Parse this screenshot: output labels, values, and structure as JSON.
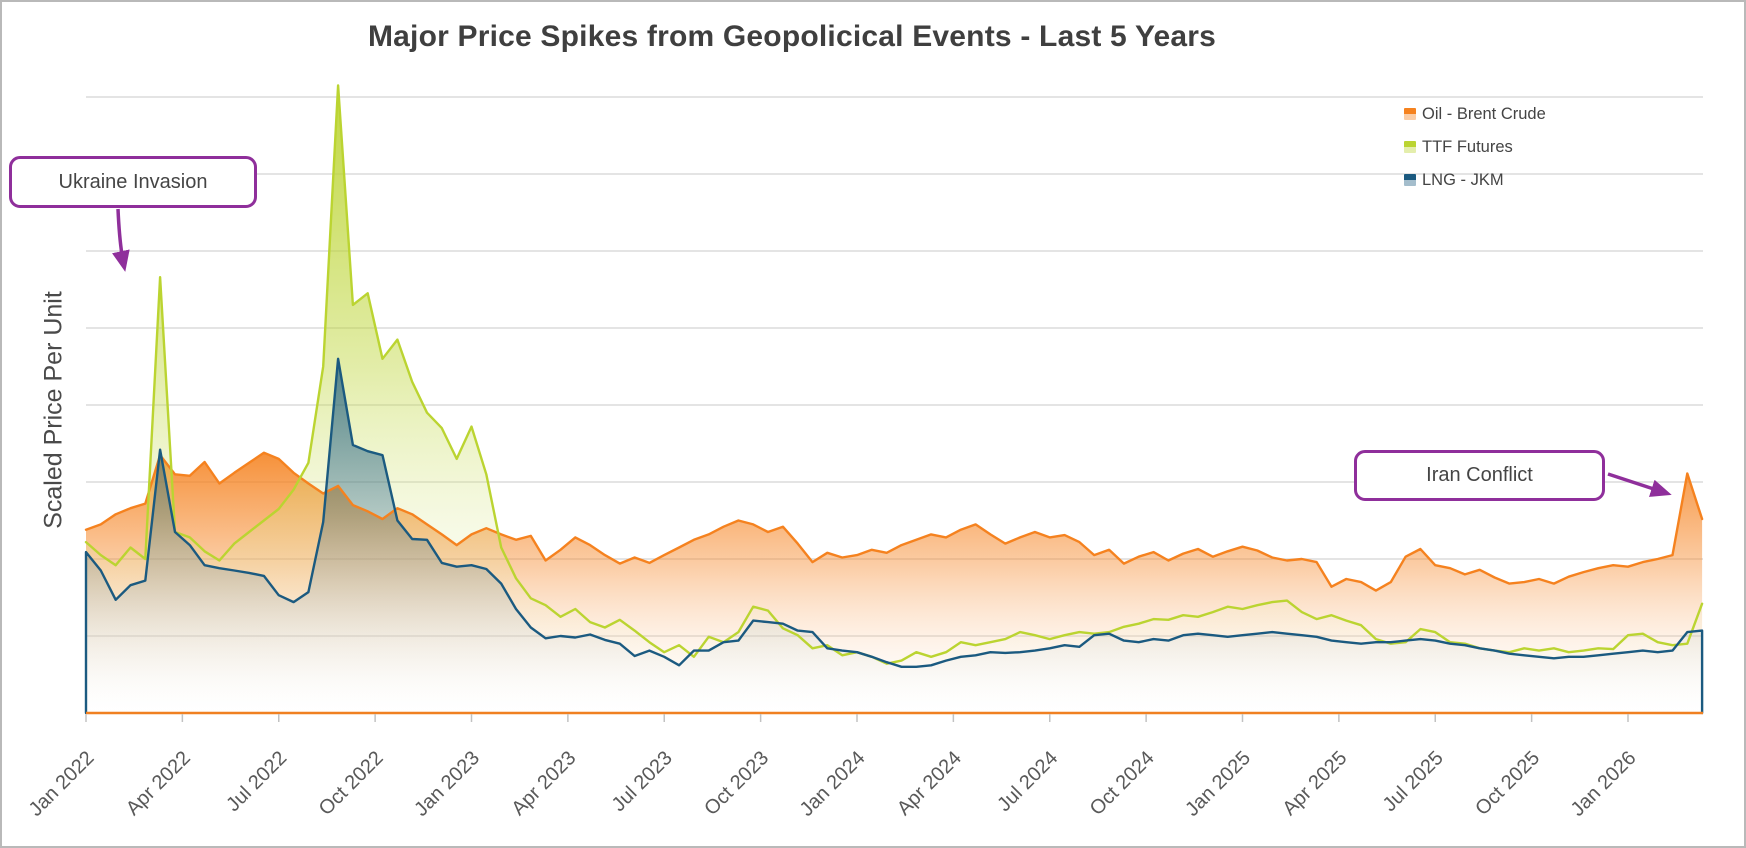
{
  "title": "Major Price Spikes from Geopolicical Events - Last 5 Years",
  "y_axis_label": "Scaled Price Per Unit",
  "annotations": [
    {
      "label": "Ukraine Invasion"
    },
    {
      "label": "Iran Conflict"
    }
  ],
  "annotation_color": "#8F2F9B",
  "colors": {
    "gridline": "#dcdcdc",
    "axis_baseline": "#F08021",
    "tick": "#c2c2c2",
    "axis_label_text": "#595959",
    "title_text": "#3f3f3f"
  },
  "chart_data": {
    "type": "area",
    "title": "Major Price Spikes from Geopolicical Events - Last 5 Years",
    "xlabel": "",
    "ylabel": "Scaled Price Per Unit",
    "x_tick_labels": [
      "Jan 2022",
      "Apr 2022",
      "Jul 2022",
      "Oct 2022",
      "Jan 2023",
      "Apr 2023",
      "Jul 2023",
      "Oct 2023",
      "Jan 2024",
      "Apr 2024",
      "Jul 2024",
      "Oct 2024",
      "Jan 2025",
      "Apr 2025",
      "Jul 2025",
      "Oct 2025",
      "Jan 2026"
    ],
    "x_tick_step_years": 0.25,
    "x_start": 2022.0,
    "x_step_years": 0.0384615,
    "x_end": 2026.19,
    "ylim": [
      0,
      8.2
    ],
    "y_gridline_values": [
      1,
      2,
      3,
      4,
      5,
      6,
      7,
      8
    ],
    "y_tick_labels_shown": false,
    "grid": true,
    "legend_position": "top-right",
    "series": [
      {
        "name": "Oil - Brent Crude",
        "color": "#F5821F",
        "values": [
          2.38,
          2.45,
          2.58,
          2.66,
          2.72,
          3.35,
          3.1,
          3.08,
          3.26,
          2.98,
          3.12,
          3.25,
          3.38,
          3.3,
          3.12,
          2.98,
          2.85,
          2.95,
          2.7,
          2.62,
          2.52,
          2.66,
          2.58,
          2.45,
          2.32,
          2.18,
          2.32,
          2.4,
          2.32,
          2.25,
          2.3,
          1.98,
          2.12,
          2.28,
          2.18,
          2.05,
          1.94,
          2.02,
          1.95,
          2.05,
          2.15,
          2.25,
          2.32,
          2.42,
          2.5,
          2.45,
          2.35,
          2.42,
          2.2,
          1.96,
          2.08,
          2.02,
          2.05,
          2.12,
          2.08,
          2.18,
          2.25,
          2.32,
          2.28,
          2.38,
          2.45,
          2.32,
          2.2,
          2.28,
          2.35,
          2.28,
          2.31,
          2.22,
          2.05,
          2.12,
          1.94,
          2.03,
          2.09,
          1.98,
          2.07,
          2.13,
          2.03,
          2.1,
          2.16,
          2.11,
          2.02,
          1.98,
          2.0,
          1.96,
          1.64,
          1.74,
          1.7,
          1.59,
          1.7,
          2.03,
          2.13,
          1.92,
          1.88,
          1.8,
          1.86,
          1.76,
          1.68,
          1.7,
          1.74,
          1.68,
          1.77,
          1.83,
          1.88,
          1.92,
          1.9,
          1.96,
          2.0,
          2.05,
          3.11,
          2.52
        ]
      },
      {
        "name": "TTF Futures",
        "color": "#BBD431",
        "values": [
          2.22,
          2.05,
          1.92,
          2.15,
          2.0,
          5.66,
          2.35,
          2.28,
          2.1,
          1.98,
          2.2,
          2.35,
          2.5,
          2.65,
          2.9,
          3.25,
          4.5,
          8.15,
          5.3,
          5.45,
          4.6,
          4.85,
          4.3,
          3.9,
          3.7,
          3.3,
          3.72,
          3.1,
          2.15,
          1.75,
          1.49,
          1.4,
          1.25,
          1.35,
          1.18,
          1.11,
          1.21,
          1.07,
          0.92,
          0.79,
          0.88,
          0.73,
          0.99,
          0.92,
          1.05,
          1.38,
          1.33,
          1.1,
          1.01,
          0.84,
          0.88,
          0.75,
          0.79,
          0.73,
          0.64,
          0.68,
          0.79,
          0.73,
          0.79,
          0.92,
          0.88,
          0.92,
          0.96,
          1.05,
          1.01,
          0.96,
          1.01,
          1.05,
          1.03,
          1.05,
          1.12,
          1.16,
          1.22,
          1.21,
          1.27,
          1.25,
          1.31,
          1.38,
          1.35,
          1.4,
          1.44,
          1.46,
          1.31,
          1.22,
          1.27,
          1.2,
          1.14,
          0.96,
          0.9,
          0.92,
          1.09,
          1.05,
          0.92,
          0.9,
          0.84,
          0.81,
          0.79,
          0.84,
          0.81,
          0.84,
          0.79,
          0.81,
          0.84,
          0.83,
          1.01,
          1.03,
          0.92,
          0.88,
          0.9,
          1.42
        ]
      },
      {
        "name": "LNG - JKM",
        "color": "#1B5A80",
        "values": [
          2.09,
          1.85,
          1.47,
          1.66,
          1.72,
          3.42,
          2.35,
          2.18,
          1.92,
          1.88,
          1.85,
          1.82,
          1.78,
          1.53,
          1.44,
          1.57,
          2.48,
          4.6,
          3.48,
          3.4,
          3.35,
          2.5,
          2.26,
          2.25,
          1.95,
          1.9,
          1.92,
          1.87,
          1.68,
          1.35,
          1.11,
          0.97,
          1.0,
          0.98,
          1.02,
          0.95,
          0.9,
          0.74,
          0.81,
          0.73,
          0.62,
          0.81,
          0.81,
          0.92,
          0.94,
          1.2,
          1.18,
          1.16,
          1.07,
          1.05,
          0.84,
          0.81,
          0.79,
          0.73,
          0.66,
          0.6,
          0.6,
          0.62,
          0.68,
          0.73,
          0.75,
          0.79,
          0.78,
          0.79,
          0.81,
          0.84,
          0.88,
          0.86,
          1.01,
          1.03,
          0.94,
          0.92,
          0.96,
          0.94,
          1.01,
          1.03,
          1.01,
          0.99,
          1.01,
          1.03,
          1.05,
          1.03,
          1.01,
          0.99,
          0.94,
          0.92,
          0.9,
          0.92,
          0.92,
          0.94,
          0.96,
          0.94,
          0.9,
          0.88,
          0.84,
          0.81,
          0.77,
          0.75,
          0.73,
          0.71,
          0.73,
          0.73,
          0.75,
          0.77,
          0.79,
          0.81,
          0.79,
          0.81,
          1.05,
          1.07
        ]
      }
    ]
  }
}
